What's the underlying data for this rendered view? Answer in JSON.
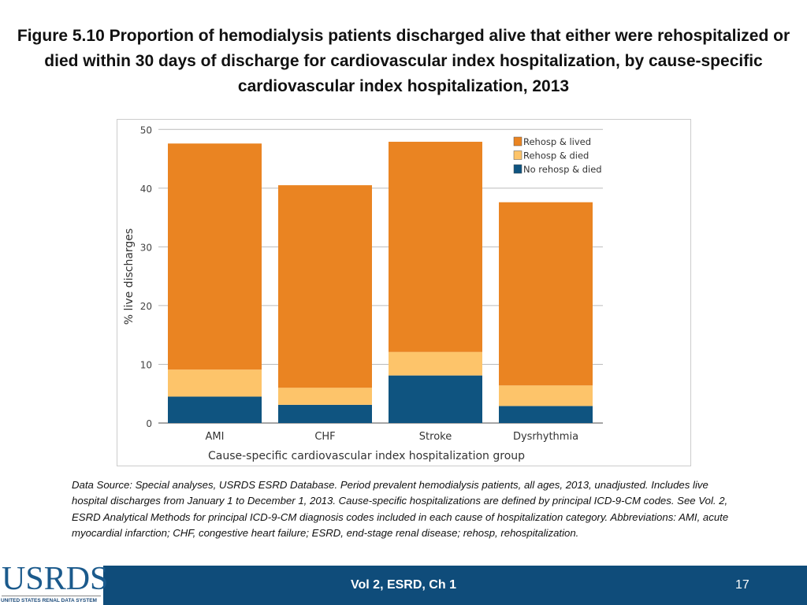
{
  "title": "Figure 5.10 Proportion of hemodialysis patients discharged alive that either were rehospitalized or died within 30 days of discharge for cardiovascular index hospitalization, by cause-specific cardiovascular index hospitalization, 2013",
  "chart_data": {
    "type": "bar",
    "stacked": true,
    "categories": [
      "AMI",
      "CHF",
      "Stroke",
      "Dysrhythmia"
    ],
    "series": [
      {
        "name": "No rehosp & died",
        "color": "#0f5480",
        "values": [
          4.5,
          3.1,
          8.1,
          2.9
        ]
      },
      {
        "name": "Rehosp & died",
        "color": "#fdc46a",
        "values": [
          4.6,
          2.9,
          4.0,
          3.5
        ]
      },
      {
        "name": "Rehosp & lived",
        "color": "#ea8422",
        "values": [
          38.5,
          34.5,
          35.8,
          31.2
        ]
      }
    ],
    "xlabel": "Cause-specific cardiovascular index hospitalization group",
    "ylabel": "% live discharges",
    "ylim": [
      0,
      50
    ],
    "yticks": [
      0,
      10,
      20,
      30,
      40,
      50
    ],
    "grid": true,
    "legend_position": "top-right",
    "legend_order": [
      "Rehosp & lived",
      "Rehosp & died",
      "No rehosp & died"
    ]
  },
  "note": "Data Source: Special analyses, USRDS ESRD Database. Period prevalent hemodialysis patients, all ages, 2013, unadjusted. Includes live hospital discharges from January 1 to December 1, 2013. Cause-specific hospitalizations are defined by principal ICD-9-CM codes. See Vol. 2, ESRD Analytical Methods for principal ICD-9-CM diagnosis codes included in each cause of hospitalization category. Abbreviations: AMI, acute myocardial infarction; CHF, congestive heart failure; ESRD, end-stage renal disease; rehosp, rehospitalization.",
  "footer": {
    "logo_text": "USRDS",
    "logo_subtext": "UNITED STATES RENAL DATA SYSTEM",
    "volume": "Vol 2, ESRD, Ch 1",
    "page": "17",
    "color": "#0f4c7a"
  }
}
